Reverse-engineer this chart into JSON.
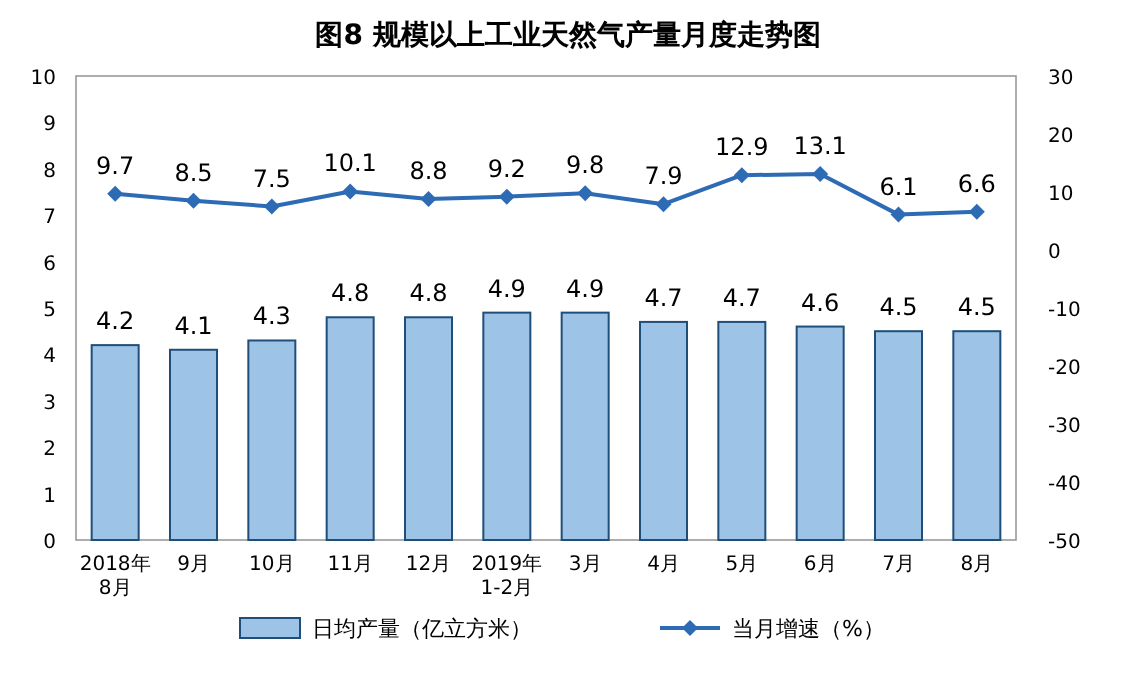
{
  "chart_data": {
    "type": "bar",
    "title": "图8  规模以上工业天然气产量月度走势图",
    "categories": [
      "2018年\n8月",
      "9月",
      "10月",
      "11月",
      "12月",
      "2019年\n1-2月",
      "3月",
      "4月",
      "5月",
      "6月",
      "7月",
      "8月"
    ],
    "series": [
      {
        "name": "日均产量（亿立方米）",
        "color": "#9dc3e6",
        "values": [
          4.2,
          4.1,
          4.3,
          4.8,
          4.8,
          4.9,
          4.9,
          4.7,
          4.7,
          4.6,
          4.5,
          4.5
        ]
      },
      {
        "name": "当月增速（%）",
        "type": "line",
        "axis": "y2",
        "color": "#2e6bb5",
        "marker": "diamond",
        "values": [
          9.7,
          8.5,
          7.5,
          10.1,
          8.8,
          9.2,
          9.8,
          7.9,
          12.9,
          13.1,
          6.1,
          6.6
        ]
      }
    ],
    "ylim": [
      0,
      10
    ],
    "yticks": [
      0,
      1,
      2,
      3,
      4,
      5,
      6,
      7,
      8,
      9,
      10
    ],
    "y2lim": [
      -50,
      30
    ],
    "y2ticks": [
      -50,
      -40,
      -30,
      -20,
      -10,
      0,
      10,
      20,
      30
    ],
    "data_labels": true,
    "legend": "bottom",
    "grid": false
  }
}
